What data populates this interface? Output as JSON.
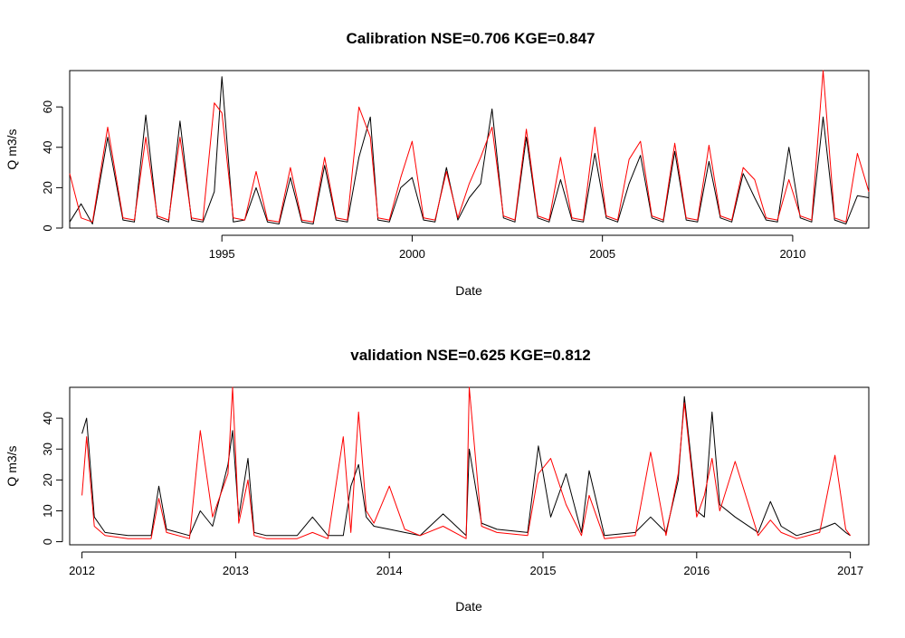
{
  "chart_data": [
    {
      "type": "line",
      "title": "Calibration NSE=0.706 KGE=0.847",
      "xlabel": "Date",
      "ylabel": "Q m3/s",
      "xlim": [
        1991.0,
        2012.0
      ],
      "ylim": [
        0,
        78
      ],
      "xticks": [
        1995,
        2000,
        2005,
        2010
      ],
      "yticks": [
        0,
        20,
        40,
        60
      ],
      "grid": false,
      "legend": "none",
      "series": [
        {
          "color": "#000000",
          "x": [
            1991.0,
            1991.3,
            1991.6,
            1992.0,
            1992.4,
            1992.7,
            1993.0,
            1993.3,
            1993.6,
            1993.9,
            1994.2,
            1994.5,
            1994.8,
            1995.0,
            1995.3,
            1995.6,
            1995.9,
            1996.2,
            1996.5,
            1996.8,
            1997.1,
            1997.4,
            1997.7,
            1998.0,
            1998.3,
            1998.6,
            1998.9,
            1999.1,
            1999.4,
            1999.7,
            2000.0,
            2000.3,
            2000.6,
            2000.9,
            2001.2,
            2001.5,
            2001.8,
            2002.1,
            2002.4,
            2002.7,
            2003.0,
            2003.3,
            2003.6,
            2003.9,
            2004.2,
            2004.5,
            2004.8,
            2005.1,
            2005.4,
            2005.7,
            2006.0,
            2006.3,
            2006.6,
            2006.9,
            2007.2,
            2007.5,
            2007.8,
            2008.1,
            2008.4,
            2008.7,
            2009.0,
            2009.3,
            2009.6,
            2009.9,
            2010.2,
            2010.5,
            2010.8,
            2011.1,
            2011.4,
            2011.7,
            2012.0
          ],
          "values": [
            3,
            12,
            2,
            45,
            4,
            3,
            56,
            5,
            3,
            53,
            4,
            3,
            18,
            75,
            3,
            4,
            20,
            3,
            2,
            25,
            3,
            2,
            31,
            4,
            3,
            35,
            55,
            4,
            3,
            20,
            25,
            4,
            3,
            30,
            4,
            15,
            22,
            59,
            5,
            3,
            45,
            5,
            3,
            24,
            4,
            3,
            37,
            5,
            3,
            22,
            36,
            5,
            3,
            38,
            4,
            3,
            33,
            5,
            3,
            27,
            15,
            4,
            3,
            40,
            5,
            3,
            55,
            4,
            2,
            16,
            15
          ]
        },
        {
          "color": "#ff0000",
          "x": [
            1991.0,
            1991.3,
            1991.6,
            1992.0,
            1992.4,
            1992.7,
            1993.0,
            1993.3,
            1993.6,
            1993.9,
            1994.2,
            1994.5,
            1994.8,
            1995.0,
            1995.3,
            1995.6,
            1995.9,
            1996.2,
            1996.5,
            1996.8,
            1997.1,
            1997.4,
            1997.7,
            1998.0,
            1998.3,
            1998.6,
            1998.9,
            1999.1,
            1999.4,
            1999.7,
            2000.0,
            2000.3,
            2000.6,
            2000.9,
            2001.2,
            2001.5,
            2001.8,
            2002.1,
            2002.4,
            2002.7,
            2003.0,
            2003.3,
            2003.6,
            2003.9,
            2004.2,
            2004.5,
            2004.8,
            2005.1,
            2005.4,
            2005.7,
            2006.0,
            2006.3,
            2006.6,
            2006.9,
            2007.2,
            2007.5,
            2007.8,
            2008.1,
            2008.4,
            2008.7,
            2009.0,
            2009.3,
            2009.6,
            2009.9,
            2010.2,
            2010.5,
            2010.8,
            2011.1,
            2011.4,
            2011.7,
            2012.0
          ],
          "values": [
            27,
            5,
            3,
            50,
            5,
            4,
            45,
            6,
            4,
            45,
            5,
            4,
            62,
            57,
            5,
            4,
            28,
            4,
            3,
            30,
            4,
            3,
            35,
            5,
            4,
            60,
            45,
            5,
            4,
            25,
            43,
            5,
            4,
            28,
            5,
            22,
            35,
            50,
            6,
            4,
            49,
            6,
            4,
            35,
            5,
            4,
            50,
            6,
            4,
            34,
            43,
            6,
            4,
            42,
            5,
            4,
            41,
            6,
            4,
            30,
            24,
            5,
            4,
            24,
            6,
            4,
            78,
            5,
            3,
            37,
            18
          ]
        }
      ]
    },
    {
      "type": "line",
      "title": "validation NSE=0.625 KGE=0.812",
      "xlabel": "Date",
      "ylabel": "Q m3/s",
      "xlim": [
        2011.92,
        2017.12
      ],
      "ylim": [
        -1,
        50
      ],
      "xticks": [
        2012,
        2013,
        2014,
        2015,
        2016,
        2017
      ],
      "yticks": [
        0,
        10,
        20,
        30,
        40
      ],
      "grid": false,
      "legend": "none",
      "series": [
        {
          "color": "#000000",
          "x": [
            2012.0,
            2012.03,
            2012.08,
            2012.15,
            2012.3,
            2012.45,
            2012.5,
            2012.55,
            2012.7,
            2012.77,
            2012.85,
            2012.95,
            2012.98,
            2013.02,
            2013.08,
            2013.12,
            2013.2,
            2013.4,
            2013.5,
            2013.6,
            2013.7,
            2013.75,
            2013.8,
            2013.85,
            2013.9,
            2014.0,
            2014.1,
            2014.2,
            2014.35,
            2014.5,
            2014.52,
            2014.6,
            2014.7,
            2014.9,
            2014.97,
            2015.05,
            2015.15,
            2015.25,
            2015.3,
            2015.4,
            2015.6,
            2015.7,
            2015.8,
            2015.88,
            2015.92,
            2016.0,
            2016.05,
            2016.1,
            2016.15,
            2016.25,
            2016.4,
            2016.48,
            2016.55,
            2016.65,
            2016.8,
            2016.9,
            2016.97,
            2017.0
          ],
          "values": [
            35,
            40,
            8,
            3,
            2,
            2,
            18,
            4,
            2,
            10,
            5,
            25,
            36,
            8,
            27,
            3,
            2,
            2,
            8,
            2,
            2,
            18,
            25,
            8,
            5,
            4,
            3,
            2,
            9,
            2,
            30,
            6,
            4,
            3,
            31,
            8,
            22,
            3,
            23,
            2,
            3,
            8,
            3,
            20,
            47,
            10,
            8,
            42,
            12,
            8,
            3,
            13,
            5,
            2,
            4,
            6,
            3,
            2
          ]
        },
        {
          "color": "#ff0000",
          "x": [
            2012.0,
            2012.03,
            2012.08,
            2012.15,
            2012.3,
            2012.45,
            2012.5,
            2012.55,
            2012.7,
            2012.77,
            2012.85,
            2012.95,
            2012.98,
            2013.02,
            2013.08,
            2013.12,
            2013.2,
            2013.4,
            2013.5,
            2013.6,
            2013.7,
            2013.75,
            2013.8,
            2013.85,
            2013.9,
            2014.0,
            2014.1,
            2014.2,
            2014.35,
            2014.5,
            2014.52,
            2014.6,
            2014.7,
            2014.9,
            2014.97,
            2015.05,
            2015.15,
            2015.25,
            2015.3,
            2015.4,
            2015.6,
            2015.7,
            2015.8,
            2015.88,
            2015.92,
            2016.0,
            2016.05,
            2016.1,
            2016.15,
            2016.25,
            2016.4,
            2016.48,
            2016.55,
            2016.65,
            2016.8,
            2016.9,
            2016.97,
            2017.0
          ],
          "values": [
            15,
            34,
            5,
            2,
            1,
            1,
            14,
            3,
            1,
            36,
            8,
            22,
            50,
            6,
            20,
            2,
            1,
            1,
            3,
            1,
            34,
            3,
            42,
            10,
            6,
            18,
            4,
            2,
            5,
            1,
            50,
            5,
            3,
            2,
            22,
            27,
            12,
            2,
            15,
            1,
            2,
            29,
            2,
            22,
            45,
            8,
            15,
            27,
            10,
            26,
            2,
            7,
            3,
            1,
            3,
            28,
            4,
            2
          ]
        }
      ]
    }
  ]
}
